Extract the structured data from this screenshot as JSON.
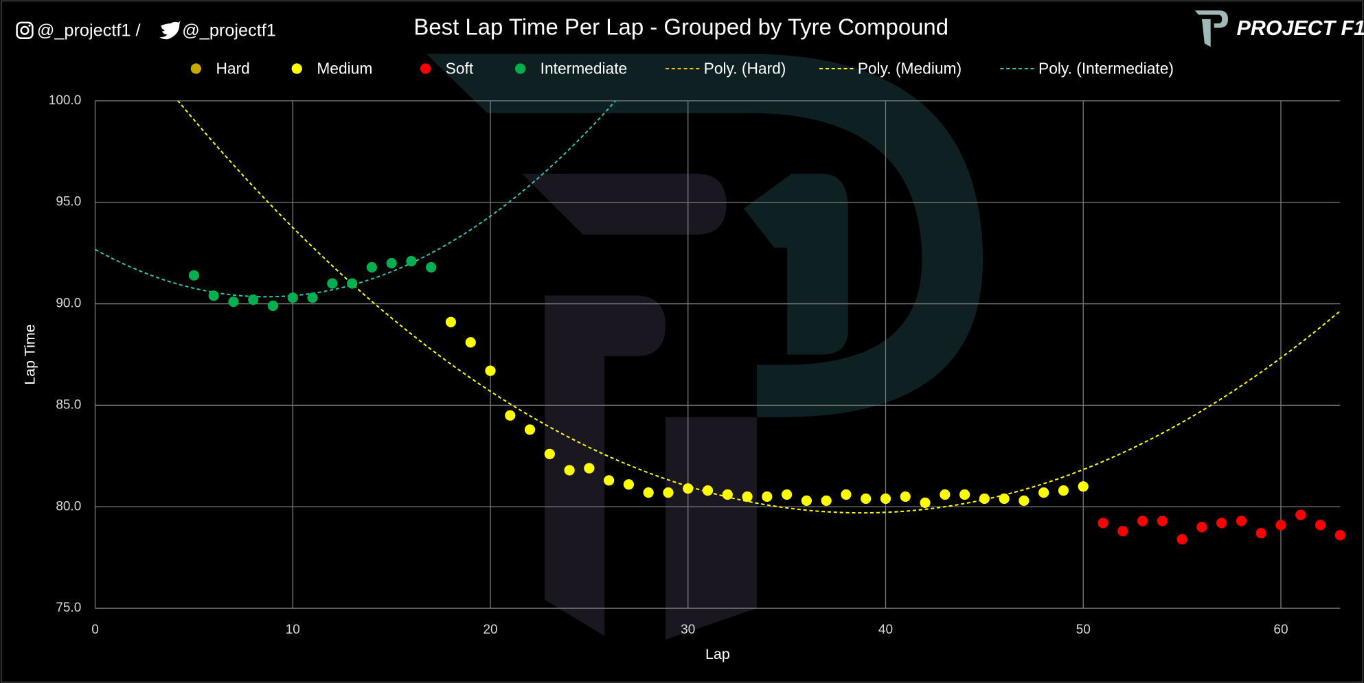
{
  "header": {
    "social": "@_projectf1 /",
    "handle": "@_projectf1",
    "brand": "PROJECT F1"
  },
  "chart_data": {
    "type": "scatter",
    "title": "Best Lap Time Per Lap - Grouped by Tyre Compound",
    "x_label": "Lap",
    "y_label": "Lap Time",
    "xlim": [
      0,
      63
    ],
    "ylim": [
      75,
      100
    ],
    "xticks": [
      0,
      10,
      20,
      30,
      40,
      50,
      60
    ],
    "yticks": [
      {
        "value": 75,
        "label": "75.0"
      },
      {
        "value": 80,
        "label": "80.0"
      },
      {
        "value": 85,
        "label": "85.0"
      },
      {
        "value": 90,
        "label": "90.0"
      },
      {
        "value": 95,
        "label": "95.0"
      },
      {
        "value": 100,
        "label": "100.0"
      }
    ],
    "grid": true,
    "series": [
      {
        "name": "Hard",
        "color": "#c9a800",
        "x": [],
        "values": []
      },
      {
        "name": "Medium",
        "color": "#ffff00",
        "x": [
          18,
          19,
          20,
          21,
          22,
          23,
          24,
          25,
          26,
          27,
          28,
          29,
          30,
          31,
          32,
          33,
          34,
          35,
          36,
          37,
          38,
          39,
          40,
          41,
          42,
          43,
          44,
          45,
          46,
          47,
          48,
          49,
          50
        ],
        "values": [
          89.1,
          88.1,
          86.7,
          84.5,
          83.8,
          82.6,
          81.8,
          81.9,
          81.3,
          81.1,
          80.7,
          80.7,
          80.9,
          80.8,
          80.6,
          80.5,
          80.5,
          80.6,
          80.3,
          80.3,
          80.6,
          80.4,
          80.4,
          80.5,
          80.2,
          80.6,
          80.6,
          80.4,
          80.4,
          80.3,
          80.7,
          80.8,
          81.0
        ]
      },
      {
        "name": "Soft",
        "color": "#ff0000",
        "x": [
          51,
          52,
          53,
          54,
          55,
          56,
          57,
          58,
          59,
          60,
          61,
          62,
          63
        ],
        "values": [
          79.2,
          78.8,
          79.3,
          79.3,
          78.4,
          79.0,
          79.2,
          79.3,
          78.7,
          79.1,
          79.6,
          79.1,
          78.6
        ]
      },
      {
        "name": "Intermediate",
        "color": "#00b050",
        "x": [
          5,
          6,
          7,
          8,
          9,
          10,
          11,
          12,
          13,
          14,
          15,
          16,
          17
        ],
        "values": [
          91.4,
          90.4,
          90.1,
          90.2,
          89.9,
          90.3,
          90.3,
          91.0,
          91.0,
          91.8,
          92.0,
          92.1,
          91.8
        ]
      }
    ],
    "trendlines": [
      {
        "name": "Poly. (Hard)",
        "fit": "Hard",
        "order": 2,
        "color": "#ffc000"
      },
      {
        "name": "Poly. (Medium)",
        "fit": "Medium",
        "order": 2,
        "color": "#ffff00"
      },
      {
        "name": "Poly. (Intermediate)",
        "fit": "Intermediate",
        "order": 2,
        "color": "#2ec4b6"
      }
    ]
  }
}
